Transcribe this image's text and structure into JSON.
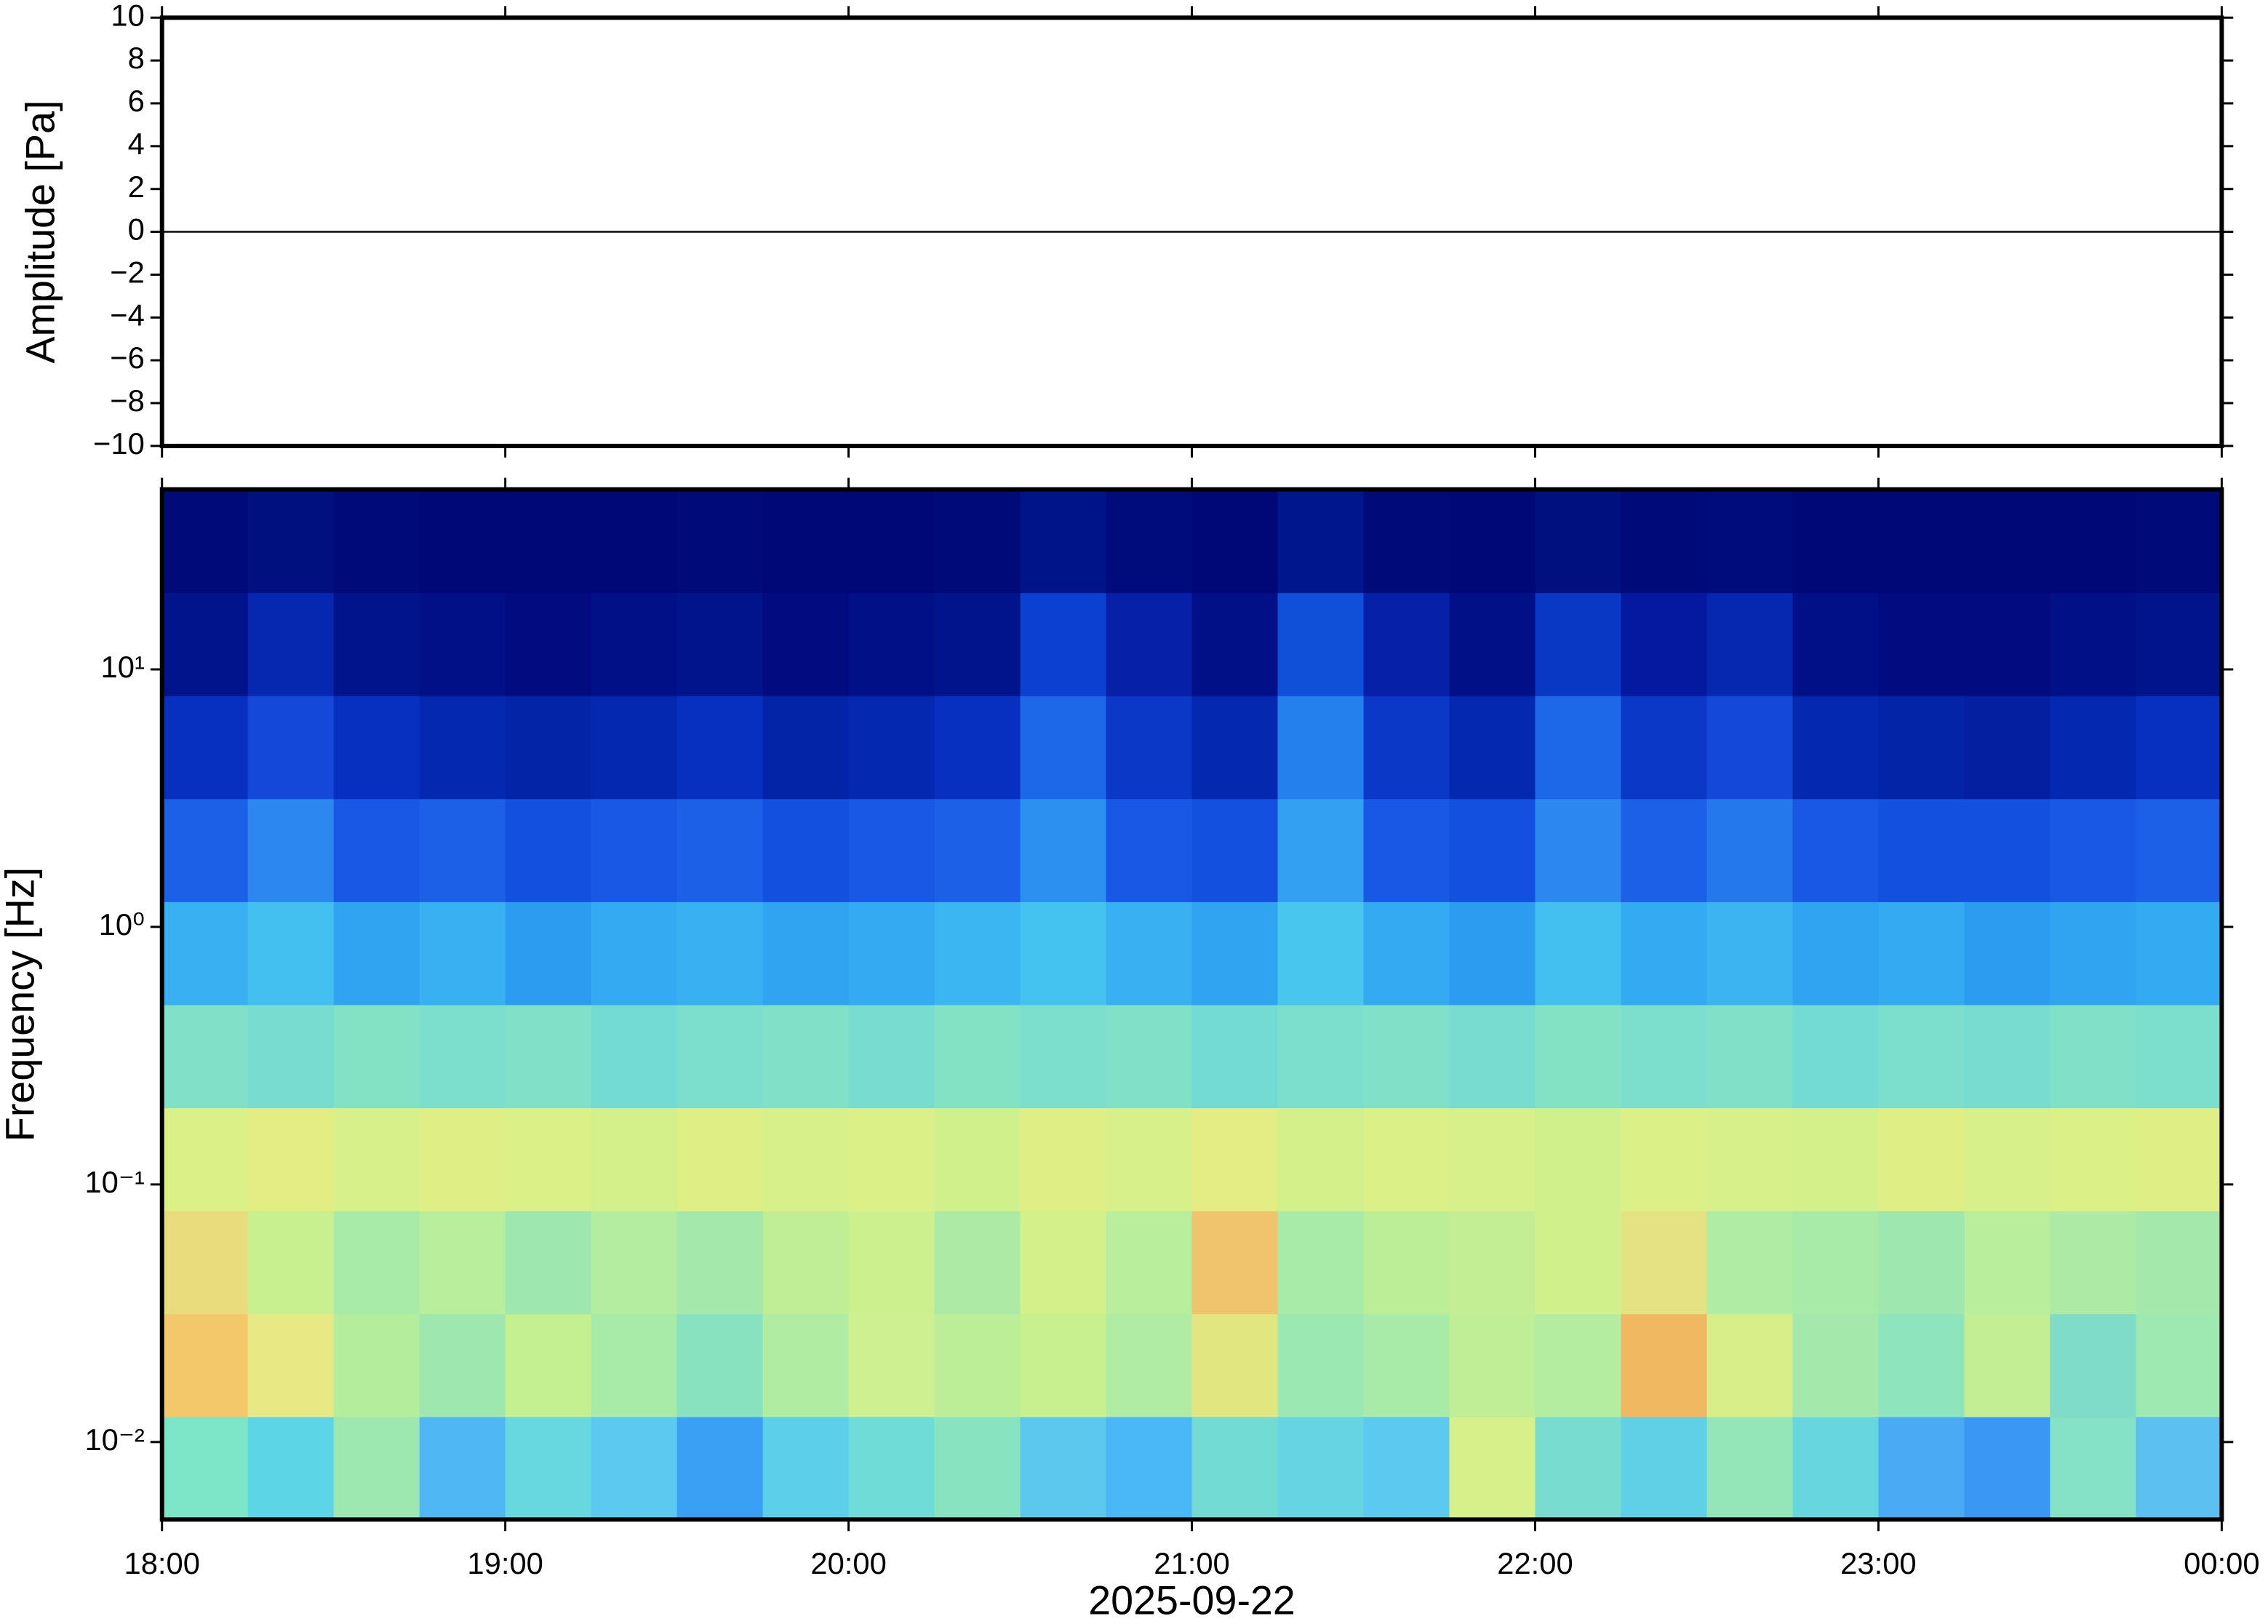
{
  "chart_data": [
    {
      "type": "line",
      "y_label": "Amplitude [Pa]",
      "x": [
        18,
        18.1,
        18.2,
        18.3,
        18.4,
        18.5,
        18.6,
        18.7,
        18.8,
        18.9,
        19,
        19.1,
        19.2,
        19.3,
        19.4,
        19.5,
        19.6,
        19.7,
        19.8,
        19.9,
        20,
        20.1,
        20.2,
        20.3,
        20.4,
        20.5,
        20.6,
        20.7,
        20.8,
        20.9,
        21,
        21.1,
        21.2,
        21.3,
        21.4,
        21.5,
        21.6,
        21.7,
        21.8,
        21.9,
        22,
        22.1,
        22.2,
        22.3,
        22.4,
        22.5,
        22.6,
        22.7,
        22.8,
        22.9,
        23,
        23.1,
        23.2,
        23.3,
        23.4,
        23.5,
        23.6,
        23.7,
        23.8,
        23.9,
        24
      ],
      "series": [
        {
          "color": "#000000",
          "values": [
            0,
            0,
            0,
            0,
            0,
            0,
            0,
            0,
            0,
            0,
            0,
            0,
            0,
            0,
            0,
            0,
            0,
            0,
            0,
            0,
            0,
            0,
            0,
            0,
            0,
            0,
            0,
            0,
            0,
            0,
            0,
            0,
            0,
            0,
            0,
            0,
            0,
            0,
            0,
            0,
            0,
            0,
            0,
            0,
            0,
            0,
            0,
            0,
            0,
            0,
            0,
            0,
            0,
            0,
            0,
            0,
            0,
            0,
            0,
            0,
            0
          ]
        }
      ],
      "xlim": [
        18,
        24
      ],
      "ylim": [
        -10,
        10
      ],
      "yticks": [
        {
          "value": -10,
          "label": "−10"
        },
        {
          "value": -8,
          "label": "−8"
        },
        {
          "value": -6,
          "label": "−6"
        },
        {
          "value": -4,
          "label": "−4"
        },
        {
          "value": -2,
          "label": "−2"
        },
        0,
        2,
        4,
        6,
        8,
        10
      ]
    },
    {
      "type": "heatmap",
      "y_label": "Frequency [Hz]",
      "x_label": "2025-09-22",
      "log_y": true,
      "xlim": [
        18,
        24
      ],
      "ylim": [
        0.005,
        50
      ],
      "xticks": [
        {
          "value": 18,
          "label": "18:00"
        },
        {
          "value": 19,
          "label": "19:00"
        },
        {
          "value": 20,
          "label": "20:00"
        },
        {
          "value": 21,
          "label": "21:00"
        },
        {
          "value": 22,
          "label": "22:00"
        },
        {
          "value": 23,
          "label": "23:00"
        },
        {
          "value": 24,
          "label": "00:00"
        }
      ],
      "yticks": [
        {
          "value": 0.01,
          "label": "10⁻²"
        },
        {
          "value": 0.1,
          "label": "10⁻¹"
        },
        {
          "value": 1,
          "label": "10⁰"
        },
        {
          "value": 10,
          "label": "10¹"
        }
      ],
      "x_bins": [
        18,
        18.25,
        18.5,
        18.75,
        19,
        19.25,
        19.5,
        19.75,
        20,
        20.25,
        20.5,
        20.75,
        21,
        21.25,
        21.5,
        21.75,
        22,
        22.25,
        22.5,
        22.75,
        23,
        23.25,
        23.5,
        23.75,
        24
      ],
      "y_bins": [
        0.005,
        0.01256,
        0.03155,
        0.07924,
        0.199,
        0.5,
        1.256,
        3.155,
        7.924,
        19.9,
        50
      ],
      "cells": [
        [
          "#7ee6c8",
          "#5cd6e6",
          "#9ce8b0",
          "#4fb8f4",
          "#68d8e0",
          "#5ccaf0",
          "#3aa0f4",
          "#5cd0ea",
          "#70dcd8",
          "#88e4c0",
          "#5cc8ee",
          "#4ab8f6",
          "#72dcd4",
          "#66d4e2",
          "#5ccaf0",
          "#d8f08a",
          "#78dcd0",
          "#60d0e6",
          "#94e6b8",
          "#68d6de",
          "#4aaaf4",
          "#3a98f4",
          "#86e2c6",
          "#5cc0f0"
        ],
        [
          "#f2c86a",
          "#e8e884",
          "#b4ee9c",
          "#9ee8b0",
          "#c4f092",
          "#a8eaa8",
          "#88e2c0",
          "#b0eca2",
          "#cef090",
          "#bcee98",
          "#c8f08e",
          "#b0eca4",
          "#e2e680",
          "#9ce8b2",
          "#a8eaa8",
          "#c0ee96",
          "#b4eca0",
          "#f0b860",
          "#d8ee88",
          "#a4e8ac",
          "#8ee4bc",
          "#c4ee94",
          "#7edcc8",
          "#9ee8b2"
        ],
        [
          "#e8dc7c",
          "#c8f08e",
          "#a8eaa8",
          "#b8ee9c",
          "#9ee8b0",
          "#b4eca0",
          "#a4e8ac",
          "#c0ee96",
          "#ccf08e",
          "#aceaa6",
          "#d4f08a",
          "#b8ee9c",
          "#f0c46c",
          "#a8eaa8",
          "#bcee98",
          "#c4ee94",
          "#d0f08c",
          "#e4e282",
          "#b0eca4",
          "#a8eaa8",
          "#9ee8b0",
          "#b8ee9c",
          "#aceaa6",
          "#a4e8ac"
        ],
        [
          "#dcf088",
          "#e4ec84",
          "#d8f08a",
          "#e0ee86",
          "#dcf088",
          "#d4f08a",
          "#e0ee86",
          "#d8f08a",
          "#dcf088",
          "#d0f08c",
          "#e0ee86",
          "#d8f08a",
          "#e4ec84",
          "#d4f08a",
          "#dcf088",
          "#d8f08a",
          "#d0f08c",
          "#dcf088",
          "#d8f08a",
          "#d4f08a",
          "#e0ee86",
          "#d8f08a",
          "#dcf088",
          "#e0ee86"
        ],
        [
          "#80e0c8",
          "#78dcd0",
          "#84e2c4",
          "#7cdecc",
          "#80e0c8",
          "#74dad4",
          "#7cdecc",
          "#80e0c8",
          "#78dcd0",
          "#84e2c4",
          "#7cdecc",
          "#80e0c8",
          "#74dad4",
          "#7cdecc",
          "#80e0c8",
          "#78dcd0",
          "#84e2c4",
          "#7cdecc",
          "#80e0c8",
          "#74dad4",
          "#7cdecc",
          "#78dcd0",
          "#80e0c8",
          "#7cdecc"
        ],
        [
          "#38b0f2",
          "#44c0f0",
          "#30a4f0",
          "#38b0f2",
          "#2c9cf0",
          "#34aaf2",
          "#38b0f2",
          "#30a4f0",
          "#34aaf2",
          "#3cb6f2",
          "#44c2f0",
          "#38b0f2",
          "#30a4f0",
          "#48c6ee",
          "#34aaf2",
          "#2c9cf0",
          "#44c0f0",
          "#34aaf2",
          "#3cb4f2",
          "#30a4f0",
          "#34aaf2",
          "#2c9cf0",
          "#30a4f0",
          "#34aaf2"
        ],
        [
          "#1c60e8",
          "#2c88f0",
          "#1858e4",
          "#1c60e8",
          "#1450e0",
          "#1858e4",
          "#1c60e8",
          "#1450e0",
          "#1858e4",
          "#1c60e8",
          "#2c90f0",
          "#1858e4",
          "#1450e0",
          "#34a0f2",
          "#1858e4",
          "#1450e0",
          "#2c88f0",
          "#1c60e8",
          "#2478ec",
          "#1858e4",
          "#1450e0",
          "#1450e0",
          "#1858e4",
          "#1c60e8"
        ],
        [
          "#0830c0",
          "#1448d8",
          "#0830c0",
          "#0428b0",
          "#0424a8",
          "#0428b0",
          "#0830c0",
          "#0424a8",
          "#0428b0",
          "#0830c0",
          "#1c68e8",
          "#0c38c8",
          "#0428b0",
          "#2480ec",
          "#0c38c8",
          "#0428b0",
          "#1c68e8",
          "#0c38c8",
          "#1448d8",
          "#0428b0",
          "#0424a8",
          "#0420a0",
          "#0428b0",
          "#0830c0"
        ],
        [
          "#02148c",
          "#0628b0",
          "#02148c",
          "#021088",
          "#020c80",
          "#021088",
          "#02148c",
          "#020c80",
          "#021088",
          "#02148c",
          "#0c40d0",
          "#0620a8",
          "#021088",
          "#1050d8",
          "#0620a8",
          "#021088",
          "#0838c4",
          "#0418a0",
          "#0628b0",
          "#021088",
          "#020c80",
          "#020c80",
          "#021088",
          "#02148c"
        ],
        [
          "#000a78",
          "#00107e",
          "#000a78",
          "#000878",
          "#000878",
          "#000878",
          "#000a78",
          "#000878",
          "#000878",
          "#000a78",
          "#00148a",
          "#000c7c",
          "#000878",
          "#00168c",
          "#000a78",
          "#000878",
          "#00107e",
          "#000a78",
          "#000c7c",
          "#000878",
          "#000878",
          "#000878",
          "#000878",
          "#000a78"
        ]
      ]
    }
  ]
}
